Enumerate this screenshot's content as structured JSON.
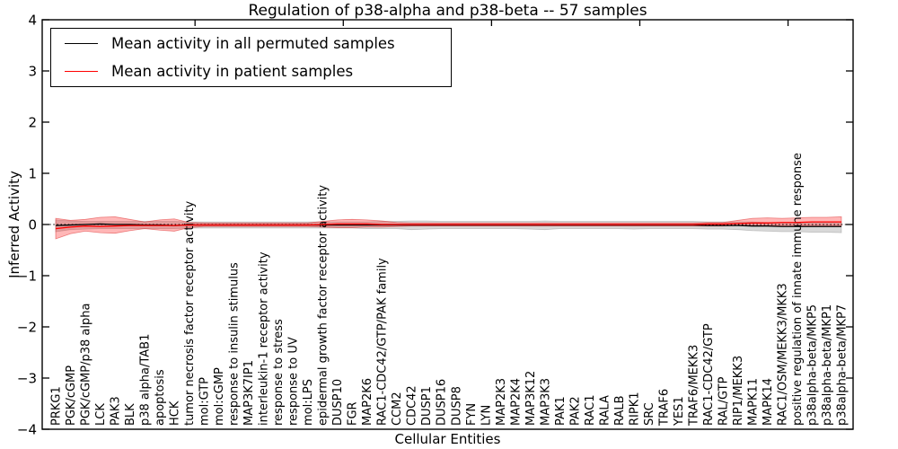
{
  "chart_data": {
    "type": "line",
    "title": "Regulation of p38-alpha and p38-beta -- 57 samples",
    "xlabel": "Cellular Entities",
    "ylabel": "Inferred Activity",
    "ylim": [
      -4,
      4
    ],
    "yticks": [
      -4,
      -3,
      -2,
      -1,
      0,
      1,
      2,
      3,
      4
    ],
    "ytick_labels": [
      "−4",
      "−3",
      "−2",
      "−1",
      "0",
      "1",
      "2",
      "3",
      "4"
    ],
    "top_ticks_at": [
      9.4,
      19.4,
      29.4,
      39.4,
      49.4
    ],
    "grid": false,
    "zero_line": true,
    "colors": {
      "permuted_line": "#000000",
      "patient_line": "#ff0000",
      "permuted_band_fill": "rgba(100,100,100,0.25)",
      "permuted_band_edge": "rgba(130,130,130,0.4)",
      "patient_band_fill": "rgba(255,30,30,0.32)",
      "patient_band_edge": "rgba(220,30,30,0.5)",
      "zero_line": "#000000",
      "spine": "#000000"
    },
    "legend": {
      "position": "upper left",
      "entries": [
        {
          "label": "Mean activity in all permuted samples",
          "color": "#000000"
        },
        {
          "label": "Mean activity in patient samples",
          "color": "#ff0000"
        }
      ]
    },
    "categories": [
      "PRKG1",
      "PGK/cGMP",
      "PGK/cGMP/p38 alpha",
      "LCK",
      "PAK3",
      "BLK",
      "p38 alpha/TAB1",
      "apoptosis",
      "HCK",
      "tumor necrosis factor receptor activity",
      "mol:GTP",
      "mol:cGMP",
      "response to insulin stimulus",
      "MAP3K7IP1",
      "interleukin-1 receptor activity",
      "response to stress",
      "response to UV",
      "mol:LPS",
      "epidermal growth factor receptor activity",
      "DUSP10",
      "FGR",
      "MAP2K6",
      "RAC1-CDC42/GTP/PAK family",
      "CCM2",
      "CDC42",
      "DUSP1",
      "DUSP16",
      "DUSP8",
      "FYN",
      "LYN",
      "MAP2K3",
      "MAP2K4",
      "MAP3K12",
      "MAP3K3",
      "PAK1",
      "PAK2",
      "RAC1",
      "RALA",
      "RALB",
      "RIPK1",
      "SRC",
      "TRAF6",
      "YES1",
      "TRAF6/MEKK3",
      "RAC1-CDC42/GTP",
      "RAL/GTP",
      "RIP1/MEKK3",
      "MAPK11",
      "MAPK14",
      "RAC1/OSM/MEKK3/MKK3",
      "positive regulation of innate immune response",
      "p38alpha-beta/MKP5",
      "p38alpha-beta/MKP1",
      "p38alpha-beta/MKP7"
    ],
    "series": [
      {
        "name": "Mean activity in all permuted samples",
        "values": [
          -0.02,
          -0.01,
          0,
          0.01,
          0,
          0,
          -0.01,
          -0.01,
          -0.02,
          -0.01,
          -0.01,
          -0.01,
          -0.01,
          -0.01,
          -0.01,
          -0.01,
          -0.01,
          -0.01,
          -0.01,
          -0.01,
          -0.01,
          -0.01,
          -0.01,
          -0.01,
          -0.01,
          -0.01,
          -0.01,
          -0.01,
          -0.01,
          -0.01,
          -0.01,
          -0.01,
          -0.01,
          -0.01,
          -0.01,
          -0.01,
          -0.01,
          -0.01,
          -0.01,
          -0.01,
          -0.01,
          -0.01,
          -0.01,
          -0.01,
          -0.02,
          -0.02,
          -0.02,
          -0.03,
          -0.03,
          -0.04,
          -0.04,
          -0.04,
          -0.04,
          -0.04
        ]
      },
      {
        "name": "Mean activity in patient samples",
        "values": [
          -0.08,
          -0.05,
          -0.03,
          -0.04,
          -0.03,
          -0.02,
          -0.02,
          -0.02,
          -0.02,
          -0.01,
          -0.01,
          -0.01,
          -0.01,
          -0.01,
          -0.01,
          -0.01,
          -0.01,
          -0.01,
          0,
          0.01,
          0.01,
          0.01,
          0,
          0,
          0,
          0,
          0,
          0,
          0,
          0,
          0,
          0,
          0,
          0,
          0,
          0,
          0,
          0,
          0,
          0,
          0,
          0,
          0,
          0,
          0.01,
          0.01,
          0.02,
          0.03,
          0.03,
          0.04,
          0.04,
          0.05,
          0.05,
          0.05
        ]
      }
    ],
    "bands": [
      {
        "name": "permuted-samples-range",
        "upper": [
          0.09,
          0.07,
          0.06,
          0.06,
          0.06,
          0.06,
          0.06,
          0.06,
          0.06,
          0.05,
          0.05,
          0.05,
          0.05,
          0.05,
          0.05,
          0.05,
          0.05,
          0.05,
          0.05,
          0.05,
          0.05,
          0.05,
          0.06,
          0.06,
          0.07,
          0.07,
          0.06,
          0.06,
          0.06,
          0.06,
          0.06,
          0.06,
          0.06,
          0.07,
          0.06,
          0.06,
          0.06,
          0.06,
          0.06,
          0.06,
          0.06,
          0.06,
          0.06,
          0.06,
          0.05,
          0.05,
          0.05,
          0.05,
          0.04,
          0.04,
          0.04,
          0.04,
          0.04,
          0.05
        ],
        "lower": [
          -0.14,
          -0.1,
          -0.09,
          -0.08,
          -0.08,
          -0.08,
          -0.08,
          -0.08,
          -0.08,
          -0.07,
          -0.07,
          -0.07,
          -0.07,
          -0.07,
          -0.07,
          -0.07,
          -0.07,
          -0.07,
          -0.07,
          -0.07,
          -0.07,
          -0.08,
          -0.08,
          -0.08,
          -0.1,
          -0.09,
          -0.08,
          -0.08,
          -0.08,
          -0.08,
          -0.08,
          -0.08,
          -0.09,
          -0.1,
          -0.08,
          -0.08,
          -0.08,
          -0.08,
          -0.08,
          -0.09,
          -0.08,
          -0.08,
          -0.08,
          -0.08,
          -0.09,
          -0.09,
          -0.1,
          -0.12,
          -0.13,
          -0.14,
          -0.14,
          -0.15,
          -0.15,
          -0.16
        ]
      },
      {
        "name": "patient-samples-range",
        "upper": [
          0.12,
          0.08,
          0.1,
          0.14,
          0.15,
          0.1,
          0.05,
          0.09,
          0.11,
          0.04,
          0.03,
          0.03,
          0.03,
          0.03,
          0.03,
          0.03,
          0.03,
          0.03,
          0.06,
          0.09,
          0.1,
          0.09,
          0.07,
          0.04,
          0.03,
          0.03,
          0.03,
          0.03,
          0.03,
          0.03,
          0.03,
          0.03,
          0.03,
          0.03,
          0.03,
          0.03,
          0.03,
          0.03,
          0.03,
          0.03,
          0.03,
          0.03,
          0.03,
          0.03,
          0.04,
          0.04,
          0.08,
          0.12,
          0.13,
          0.12,
          0.13,
          0.14,
          0.14,
          0.15
        ],
        "lower": [
          -0.28,
          -0.18,
          -0.13,
          -0.16,
          -0.17,
          -0.12,
          -0.08,
          -0.11,
          -0.13,
          -0.06,
          -0.04,
          -0.04,
          -0.04,
          -0.04,
          -0.04,
          -0.04,
          -0.04,
          -0.04,
          -0.05,
          -0.06,
          -0.06,
          -0.05,
          -0.05,
          -0.04,
          -0.03,
          -0.03,
          -0.03,
          -0.03,
          -0.03,
          -0.03,
          -0.03,
          -0.03,
          -0.03,
          -0.03,
          -0.03,
          -0.03,
          -0.03,
          -0.03,
          -0.03,
          -0.03,
          -0.03,
          -0.03,
          -0.03,
          -0.03,
          -0.03,
          -0.03,
          -0.02,
          -0.02,
          -0.02,
          -0.02,
          -0.02,
          -0.02,
          -0.02,
          -0.02
        ]
      }
    ]
  }
}
